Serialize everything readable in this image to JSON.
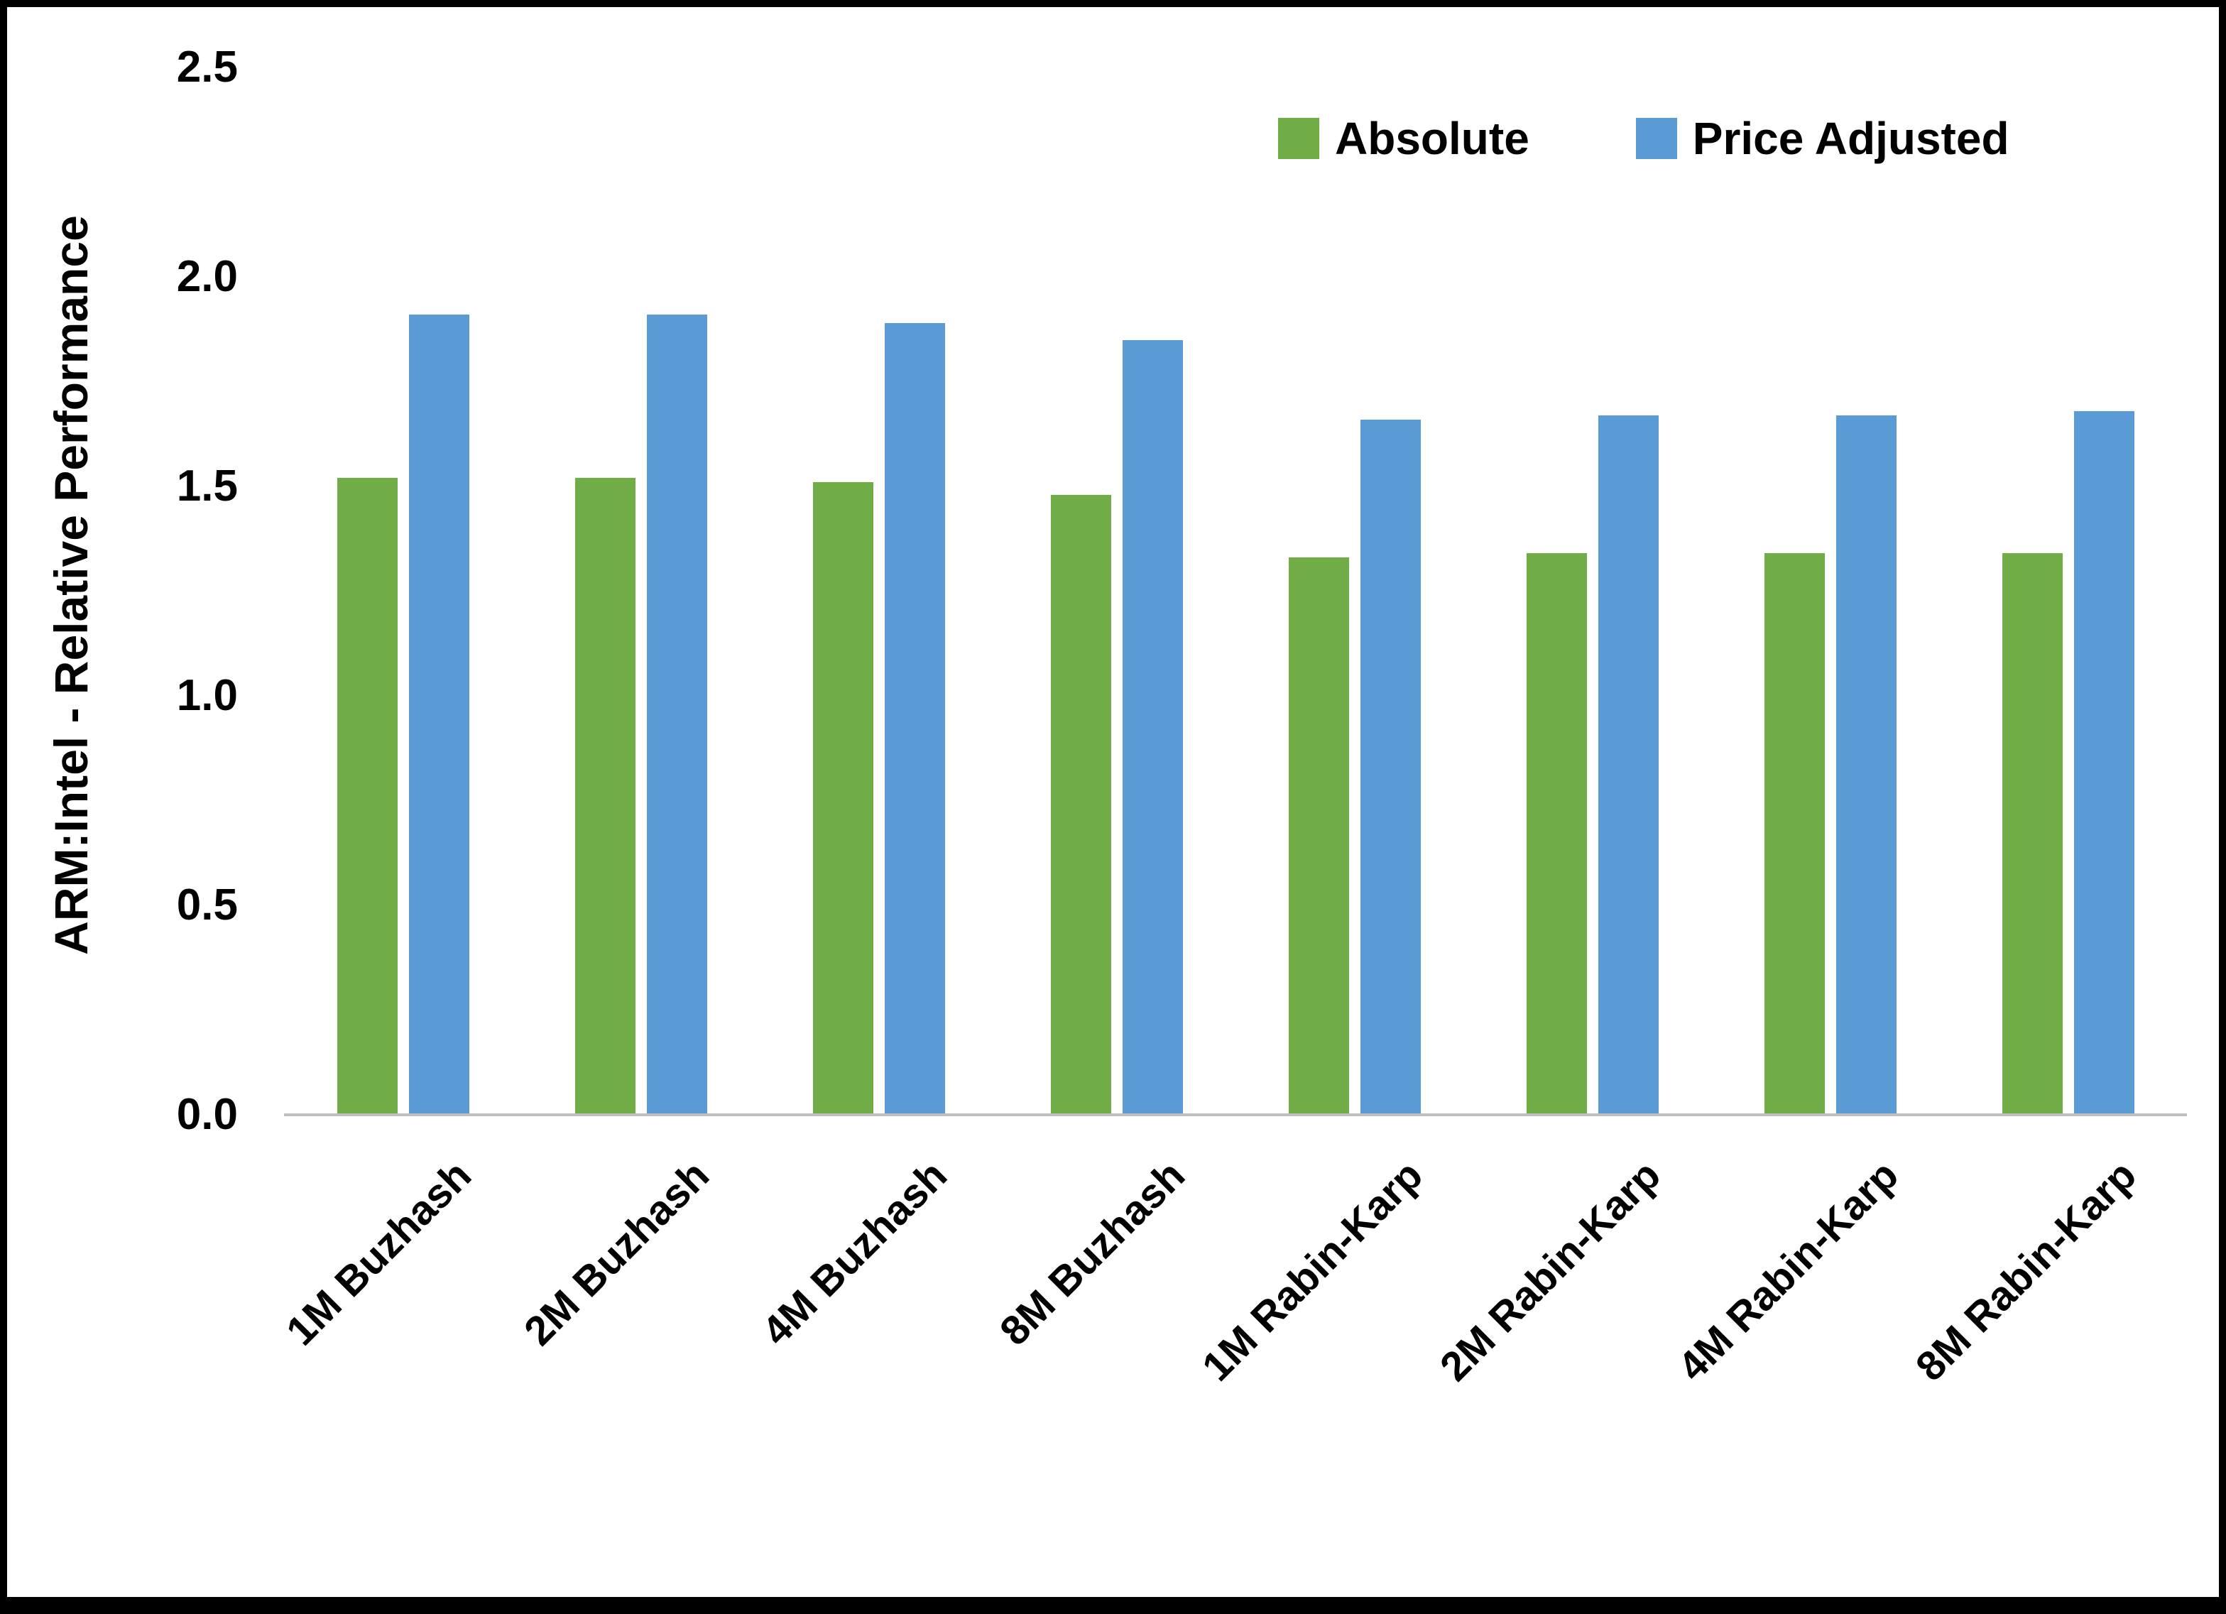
{
  "page": {
    "background": "#ffffff",
    "frame_color": "#000000"
  },
  "chart_data": {
    "type": "bar",
    "title": "",
    "xlabel": "",
    "ylabel": "ARM:Intel - Relative Performance",
    "ylim": [
      0,
      2.5
    ],
    "yticks": [
      0.0,
      0.5,
      1.0,
      1.5,
      2.0,
      2.5
    ],
    "ytick_format_decimals": 1,
    "grid": false,
    "legend_position": "top-right",
    "axis_line_color": "#bfbfbf",
    "categories": [
      "1M Buzhash",
      "2M Buzhash",
      "4M Buzhash",
      "8M Buzhash",
      "1M Rabin-Karp",
      "2M Rabin-Karp",
      "4M Rabin-Karp",
      "8M Rabin-Karp"
    ],
    "series": [
      {
        "name": "Absolute",
        "color": "#70AD47",
        "values": [
          1.52,
          1.52,
          1.51,
          1.48,
          1.33,
          1.34,
          1.34,
          1.34
        ]
      },
      {
        "name": "Price Adjusted",
        "color": "#5B9BD5",
        "values": [
          1.91,
          1.91,
          1.89,
          1.85,
          1.66,
          1.67,
          1.67,
          1.68
        ]
      }
    ]
  }
}
